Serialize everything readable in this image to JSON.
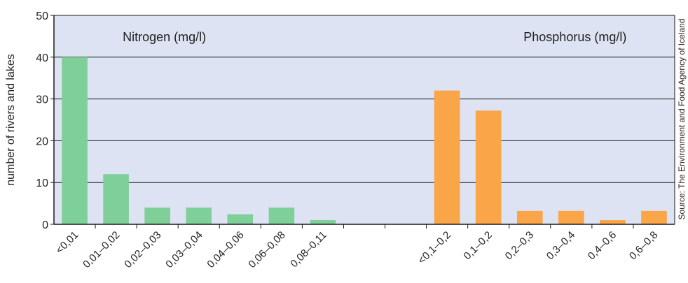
{
  "chart_data": {
    "type": "bar",
    "ylabel": "number of rivers and lakes",
    "ylim": [
      0,
      50
    ],
    "yticks": [
      "0",
      "10",
      "20",
      "30",
      "40",
      "50"
    ],
    "grid": true,
    "source": "Source: The Environment and Food Agency of Iceland",
    "colors": {
      "plot_bg": "#dde3f2",
      "nitrogen": "#7fcf98",
      "phosphorus": "#f9a548",
      "grid": "#1a1a1a"
    },
    "groups": [
      {
        "label": "Nitrogen (mg/l)",
        "categories": [
          "<0,01",
          "0,01–0,02",
          "0,02–0,03",
          "0,03–0,04",
          "0,04–0,06",
          "0,06–0,08",
          "0,08–0,11"
        ],
        "values": [
          40,
          12,
          4,
          4,
          2.4,
          4,
          1
        ]
      },
      {
        "label": "Phosphorus (mg/l)",
        "categories": [
          "<0,1–0,2",
          "0,1–0,2",
          "0,2–0,3",
          "0,3–0,4",
          "0,4–0,6",
          "0,6–0,8"
        ],
        "values": [
          32,
          27.2,
          3.2,
          3.2,
          1,
          3.2
        ]
      }
    ]
  }
}
